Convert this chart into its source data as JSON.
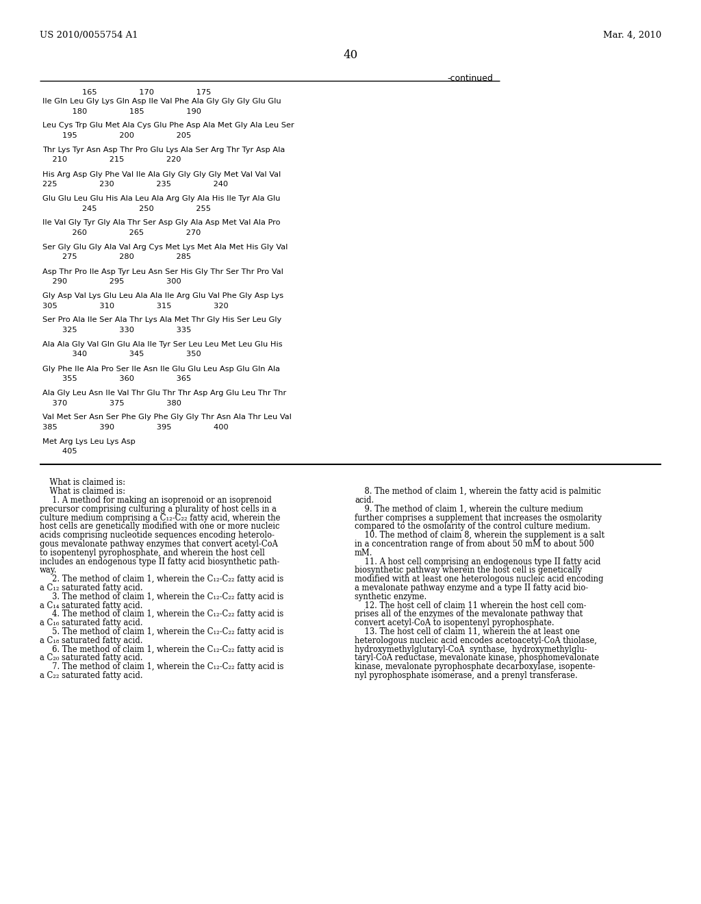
{
  "header_left": "US 2010/0055754 A1",
  "header_right": "Mar. 4, 2010",
  "page_number": "40",
  "continued_label": "-continued",
  "bg_color": "#ffffff",
  "sequence_blocks": [
    {
      "num_line": "                165                 170                 175",
      "seq_line": "Ile Gln Leu Gly Lys Gln Asp Ile Val Phe Ala Gly Gly Gly Glu Glu",
      "sub_line": "            180                 185                 190"
    },
    {
      "seq_line": "Leu Cys Trp Glu Met Ala Cys Glu Phe Asp Ala Met Gly Ala Leu Ser",
      "sub_line": "        195                 200                 205"
    },
    {
      "seq_line": "Thr Lys Tyr Asn Asp Thr Pro Glu Lys Ala Ser Arg Thr Tyr Asp Ala",
      "sub_line": "    210                 215                 220"
    },
    {
      "seq_line": "His Arg Asp Gly Phe Val Ile Ala Gly Gly Gly Gly Met Val Val Val",
      "sub_line": "225                 230                 235                 240"
    },
    {
      "seq_line": "Glu Glu Leu Glu His Ala Leu Ala Arg Gly Ala His Ile Tyr Ala Glu",
      "sub_line": "                245                 250                 255"
    },
    {
      "seq_line": "Ile Val Gly Tyr Gly Ala Thr Ser Asp Gly Ala Asp Met Val Ala Pro",
      "sub_line": "            260                 265                 270"
    },
    {
      "seq_line": "Ser Gly Glu Gly Ala Val Arg Cys Met Lys Met Ala Met His Gly Val",
      "sub_line": "        275                 280                 285"
    },
    {
      "seq_line": "Asp Thr Pro Ile Asp Tyr Leu Asn Ser His Gly Thr Ser Thr Pro Val",
      "sub_line": "    290                 295                 300"
    },
    {
      "seq_line": "Gly Asp Val Lys Glu Leu Ala Ala Ile Arg Glu Val Phe Gly Asp Lys",
      "sub_line": "305                 310                 315                 320"
    },
    {
      "seq_line": "Ser Pro Ala Ile Ser Ala Thr Lys Ala Met Thr Gly His Ser Leu Gly",
      "sub_line": "        325                 330                 335"
    },
    {
      "seq_line": "Ala Ala Gly Val Gln Glu Ala Ile Tyr Ser Leu Leu Met Leu Glu His",
      "sub_line": "            340                 345                 350"
    },
    {
      "seq_line": "Gly Phe Ile Ala Pro Ser Ile Asn Ile Glu Glu Leu Asp Glu Gln Ala",
      "sub_line": "        355                 360                 365"
    },
    {
      "seq_line": "Ala Gly Leu Asn Ile Val Thr Glu Thr Thr Asp Arg Glu Leu Thr Thr",
      "sub_line": "    370                 375                 380"
    },
    {
      "seq_line": "Val Met Ser Asn Ser Phe Gly Phe Gly Gly Thr Asn Ala Thr Leu Val",
      "sub_line": "385                 390                 395                 400"
    },
    {
      "seq_line": "Met Arg Lys Leu Lys Asp",
      "sub_line": "        405"
    }
  ],
  "claims_left_blocks": [
    {
      "indent": "    ",
      "bold_prefix": "",
      "text": "What is claimed is:"
    },
    {
      "indent": "    ",
      "bold_prefix": "1",
      "text": ". A method for making an isoprenoid or an isoprenoid precursor comprising culturing a plurality of host cells in a culture medium comprising a C12-C22 fatty acid, wherein the host cells are genetically modified with one or more nucleic acids comprising nucleotide sequences encoding heterologous mevalonate pathway enzymes that convert acetyl-CoA to isopentenyl pyrophosphate, and wherein the host cell includes an endogenous type II fatty acid biosynthetic pathway.",
      "wrapped": [
        "      1. A method for making an isoprenoid or an isoprenoid",
        "precursor comprising culturing a plurality of host cells in a",
        "culture medium comprising a C₁₂-C₂₂ fatty acid, wherein the",
        "host cells are genetically modified with one or more nucleic",
        "acids comprising nucleotide sequences encoding heterolo-",
        "gous mevalonate pathway enzymes that convert acetyl-CoA",
        "to isopentenyl pyrophosphate, and wherein the host cell",
        "includes an endogenous type II fatty acid biosynthetic path-",
        "way."
      ]
    },
    {
      "wrapped": [
        "      2. The method of claim  1, wherein the C₁₂-C₂₂ fatty acid is",
        "a C₁₂ saturated fatty acid."
      ]
    },
    {
      "wrapped": [
        "      3. The method of claim  1, wherein the C₁₂-C₂₂ fatty acid is",
        "a C₁₄ saturated fatty acid."
      ]
    },
    {
      "wrapped": [
        "      4. The method of claim  1, wherein the C₁₂-C₂₂ fatty acid is",
        "a C₁₆ saturated fatty acid."
      ]
    },
    {
      "wrapped": [
        "      5. The method of claim  1, wherein the C₁₂-C₂₂ fatty acid is",
        "a C₁₈ saturated fatty acid."
      ]
    },
    {
      "wrapped": [
        "      6. The method of claim  1, wherein the C₁₂-C₂₂ fatty acid is",
        "a C₂₀ saturated fatty acid."
      ]
    },
    {
      "wrapped": [
        "      7. The method of claim  1, wherein the C₁₂-C₂₂ fatty acid is",
        "a C₂₂ saturated fatty acid."
      ]
    }
  ],
  "claims_right_blocks": [
    {
      "wrapped": [
        "     8. The method of claim  1, wherein the fatty acid is palmitic",
        "acid."
      ]
    },
    {
      "wrapped": [
        "     9. The method of claim  1, wherein the culture medium",
        "further comprises a supplement that increases the osmolarity",
        "compared to the osmolarity of the control culture medium."
      ]
    },
    {
      "wrapped": [
        "    10. The method of claim  8, wherein the supplement is a salt",
        "in a concentration range of from about 50 mM to about 500",
        "mM."
      ]
    },
    {
      "wrapped": [
        "    11. A host cell comprising an endogenous type II fatty acid",
        "biosynthetic pathway wherein the host cell is genetically",
        "modified with at least one heterologous nucleic acid encoding",
        "a mevalonate pathway enzyme and a type II fatty acid bio-",
        "synthetic enzyme."
      ]
    },
    {
      "wrapped": [
        "    12. The host cell of claim  11 wherein the host cell com-",
        "prises all of the enzymes of the mevalonate pathway that",
        "convert acetyl-CoA to isopentenyl pyrophosphate."
      ]
    },
    {
      "wrapped": [
        "    13. The host cell of claim  11, wherein the at least one",
        "heterologous nucleic acid encodes acetoacetyl-CoA thiolase,",
        "hydroxymethylglutaryl-CoA  synthase,  hydroxymethylglu-",
        "taryl-CoA reductase, mevalonate kinase, phosphomevalonate",
        "kinase, mevalonate pyrophosphate decarboxylase, isopente-",
        "nyl pyrophosphate isomerase, and a prenyl transferase."
      ]
    }
  ]
}
